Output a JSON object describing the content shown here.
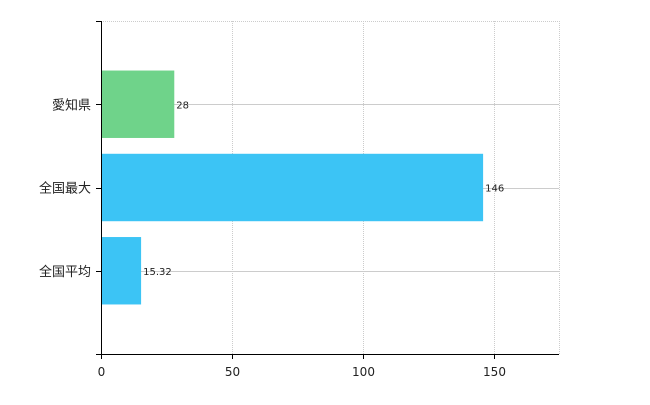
{
  "chart_data": {
    "type": "bar",
    "orientation": "horizontal",
    "title": "",
    "xlabel": "",
    "ylabel": "",
    "categories": [
      "愛知県",
      "全国最大",
      "全国平均"
    ],
    "values": [
      28,
      146,
      15.32
    ],
    "data_labels": [
      "28",
      "146",
      "15.32"
    ],
    "bar_colors": [
      "#6fd38a",
      "#3cc4f5",
      "#3cc4f5"
    ],
    "xlim": [
      0,
      175
    ],
    "xticks": [
      0,
      50,
      100,
      150
    ],
    "xtick_labels": [
      "0",
      "50",
      "100",
      "150"
    ],
    "grid": true,
    "legend": "none"
  }
}
